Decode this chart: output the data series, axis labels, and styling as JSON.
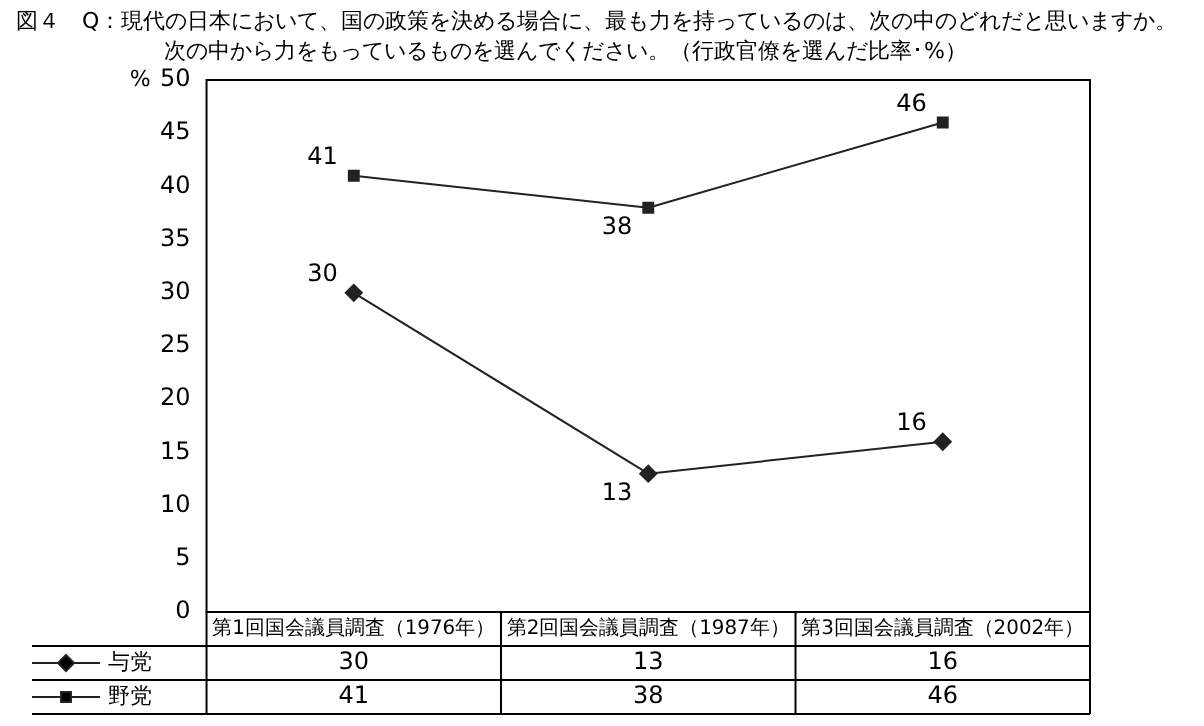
{
  "chart_data": {
    "type": "line",
    "title": "図４　Q：現代の日本において、国の政策を決める場合に、最も力を持っているのは、次の中のどれだと思いますか。",
    "subtitle": "次の中から力をもっているものを選んでください。（行政官僚を選んだ比率･%）",
    "ylabel": "%",
    "categories": [
      "第1回国会議員調査（1976年）",
      "第2回国会議員調査（1987年）",
      "第3回国会議員調査（2002年）"
    ],
    "series": [
      {
        "name": "与党",
        "color": "#222222",
        "marker": "diamond",
        "values": [
          30,
          13,
          16
        ],
        "value_labels": [
          "30",
          "13",
          "16"
        ]
      },
      {
        "name": "野党",
        "color": "#222222",
        "marker": "square",
        "values": [
          41,
          38,
          46
        ],
        "value_labels": [
          "41",
          "38",
          "46"
        ]
      }
    ],
    "annotations": [
      {
        "text": "30",
        "x": "第1回国会議員調査（1976年）",
        "y": 30
      },
      {
        "text": "13",
        "x": "第2回国会議員調査（1987年）",
        "y": 13
      },
      {
        "text": "16",
        "x": "第3回国会議員調査（2002年）",
        "y": 16
      },
      {
        "text": "41",
        "x": "第1回国会議員調査（1976年）",
        "y": 41
      },
      {
        "text": "38",
        "x": "第2回国会議員調査（1987年）",
        "y": 38
      },
      {
        "text": "46",
        "x": "第3回国会議員調査（2002年）",
        "y": 46
      }
    ],
    "ylim": [
      0,
      50
    ],
    "yticks": [
      0,
      5,
      10,
      15,
      20,
      25,
      30,
      35,
      40,
      45,
      50
    ],
    "grid": false,
    "legend": "bottom left"
  }
}
